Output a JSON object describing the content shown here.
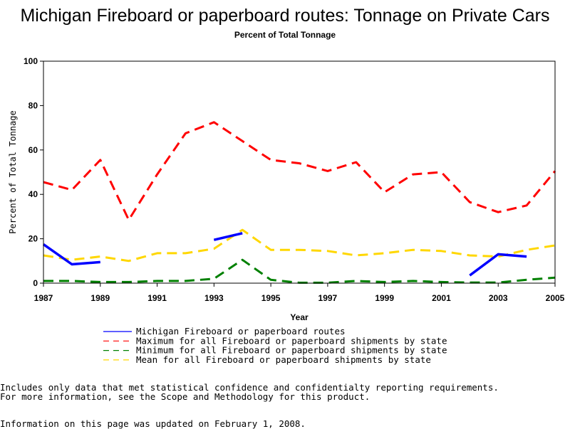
{
  "title": "Michigan Fireboard or paperboard routes: Tonnage on Private Cars",
  "subtitle": "Percent of Total Tonnage",
  "chart_data": {
    "type": "line",
    "title": "Michigan Fireboard or paperboard routes: Tonnage on Private Cars",
    "subtitle": "Percent of Total Tonnage",
    "xlabel": "Year",
    "ylabel": "Percent of Total Tonnage",
    "xlim": [
      1987,
      2005
    ],
    "ylim": [
      0,
      100
    ],
    "x_ticks": [
      "1987",
      "1989",
      "1991",
      "1993",
      "1995",
      "1997",
      "1999",
      "2001",
      "2003",
      "2005"
    ],
    "y_ticks": [
      "0",
      "20",
      "40",
      "60",
      "80",
      "100"
    ],
    "x": [
      1987,
      1988,
      1989,
      1990,
      1991,
      1992,
      1993,
      1994,
      1995,
      1996,
      1997,
      1998,
      1999,
      2000,
      2001,
      2002,
      2003,
      2004,
      2005
    ],
    "grid": false,
    "legend_position": "bottom",
    "series": [
      {
        "name": "Michigan Fireboard or paperboard routes",
        "color": "#0000ff",
        "style": "solid",
        "values": [
          17.5,
          8.5,
          9.5,
          null,
          null,
          null,
          19.5,
          22.5,
          null,
          null,
          null,
          null,
          null,
          null,
          null,
          3.5,
          13,
          12,
          null
        ]
      },
      {
        "name": "Maximum for all Fireboard or paperboard shipments by state",
        "color": "#ff0000",
        "style": "dashed",
        "values": [
          45.5,
          42,
          55.5,
          28.5,
          49,
          67.5,
          72.5,
          64,
          55.5,
          54,
          50.5,
          54.5,
          41,
          49,
          50,
          36.5,
          32,
          35,
          50.5
        ]
      },
      {
        "name": "Minimum for all Fireboard or paperboard shipments by state",
        "color": "#008000",
        "style": "dashed",
        "values": [
          1,
          1,
          0.5,
          0.5,
          1,
          1,
          2,
          10.5,
          1.5,
          0.2,
          0.2,
          1,
          0.5,
          1,
          0.5,
          0.3,
          0.3,
          1.5,
          2.5
        ]
      },
      {
        "name": "Mean for all Fireboard or paperboard shipments by state",
        "color": "#ffd700",
        "style": "dashed",
        "values": [
          12.5,
          10.5,
          12,
          10,
          13.5,
          13.5,
          15.5,
          24,
          15,
          15,
          14.5,
          12.5,
          13.5,
          15,
          14.5,
          12.5,
          12,
          15,
          17
        ]
      }
    ]
  },
  "notes": {
    "line1": "Includes only data that met statistical confidence and confidentialty reporting requirements.",
    "line2": "For more information, see the Scope and Methodology for this product.",
    "line3": "Information on this page was updated on February 1, 2008."
  }
}
